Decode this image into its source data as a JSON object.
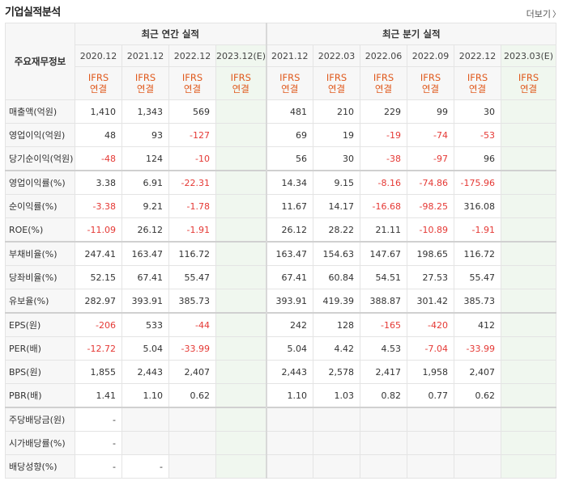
{
  "page": {
    "title": "기업실적분석",
    "more_label": "더보기"
  },
  "header": {
    "row_label": "주요재무정보",
    "annual_group": "최근 연간 실적",
    "quarter_group": "최근 분기 실적",
    "annual_periods": [
      "2020.12",
      "2021.12",
      "2022.12",
      "2023.12(E)"
    ],
    "quarter_periods": [
      "2021.12",
      "2022.03",
      "2022.06",
      "2022.09",
      "2022.12",
      "2023.03(E)"
    ],
    "basis_top": "IFRS",
    "basis_bottom": "연결"
  },
  "rows": [
    {
      "label": "매출액(억원)",
      "annual": [
        "1,410",
        "1,343",
        "569",
        ""
      ],
      "quarter": [
        "481",
        "210",
        "229",
        "99",
        "30",
        ""
      ]
    },
    {
      "label": "영업이익(억원)",
      "annual": [
        "48",
        "93",
        "-127",
        ""
      ],
      "quarter": [
        "69",
        "19",
        "-19",
        "-74",
        "-53",
        ""
      ]
    },
    {
      "label": "당기순이익(억원)",
      "annual": [
        "-48",
        "124",
        "-10",
        ""
      ],
      "quarter": [
        "56",
        "30",
        "-38",
        "-97",
        "96",
        ""
      ]
    },
    {
      "label": "영업이익률(%)",
      "annual": [
        "3.38",
        "6.91",
        "-22.31",
        ""
      ],
      "quarter": [
        "14.34",
        "9.15",
        "-8.16",
        "-74.86",
        "-175.96",
        ""
      ]
    },
    {
      "label": "순이익률(%)",
      "annual": [
        "-3.38",
        "9.21",
        "-1.78",
        ""
      ],
      "quarter": [
        "11.67",
        "14.17",
        "-16.68",
        "-98.25",
        "316.08",
        ""
      ]
    },
    {
      "label": "ROE(%)",
      "annual": [
        "-11.09",
        "26.12",
        "-1.91",
        ""
      ],
      "quarter": [
        "26.12",
        "28.22",
        "21.11",
        "-10.89",
        "-1.91",
        ""
      ]
    },
    {
      "label": "부채비율(%)",
      "annual": [
        "247.41",
        "163.47",
        "116.72",
        ""
      ],
      "quarter": [
        "163.47",
        "154.63",
        "147.67",
        "198.65",
        "116.72",
        ""
      ]
    },
    {
      "label": "당좌비율(%)",
      "annual": [
        "52.15",
        "67.41",
        "55.47",
        ""
      ],
      "quarter": [
        "67.41",
        "60.84",
        "54.51",
        "27.53",
        "55.47",
        ""
      ]
    },
    {
      "label": "유보율(%)",
      "annual": [
        "282.97",
        "393.91",
        "385.73",
        ""
      ],
      "quarter": [
        "393.91",
        "419.39",
        "388.87",
        "301.42",
        "385.73",
        ""
      ]
    },
    {
      "label": "EPS(원)",
      "annual": [
        "-206",
        "533",
        "-44",
        ""
      ],
      "quarter": [
        "242",
        "128",
        "-165",
        "-420",
        "412",
        ""
      ]
    },
    {
      "label": "PER(배)",
      "annual": [
        "-12.72",
        "5.04",
        "-33.99",
        ""
      ],
      "quarter": [
        "5.04",
        "4.42",
        "4.53",
        "-7.04",
        "-33.99",
        ""
      ]
    },
    {
      "label": "BPS(원)",
      "annual": [
        "1,855",
        "2,443",
        "2,407",
        ""
      ],
      "quarter": [
        "2,443",
        "2,578",
        "2,417",
        "1,958",
        "2,407",
        ""
      ]
    },
    {
      "label": "PBR(배)",
      "annual": [
        "1.41",
        "1.10",
        "0.62",
        ""
      ],
      "quarter": [
        "1.10",
        "1.03",
        "0.82",
        "0.77",
        "0.62",
        ""
      ]
    },
    {
      "label": "주당배당금(원)",
      "annual": [
        "-",
        "",
        "",
        ""
      ],
      "quarter": [
        "",
        "",
        "",
        "",
        "",
        ""
      ]
    },
    {
      "label": "시가배당률(%)",
      "annual": [
        "-",
        "",
        "",
        ""
      ],
      "quarter": [
        "",
        "",
        "",
        "",
        "",
        ""
      ]
    },
    {
      "label": "배당성향(%)",
      "annual": [
        "-",
        "-",
        "",
        ""
      ],
      "quarter": [
        "",
        "",
        "",
        "",
        "",
        ""
      ]
    }
  ]
}
